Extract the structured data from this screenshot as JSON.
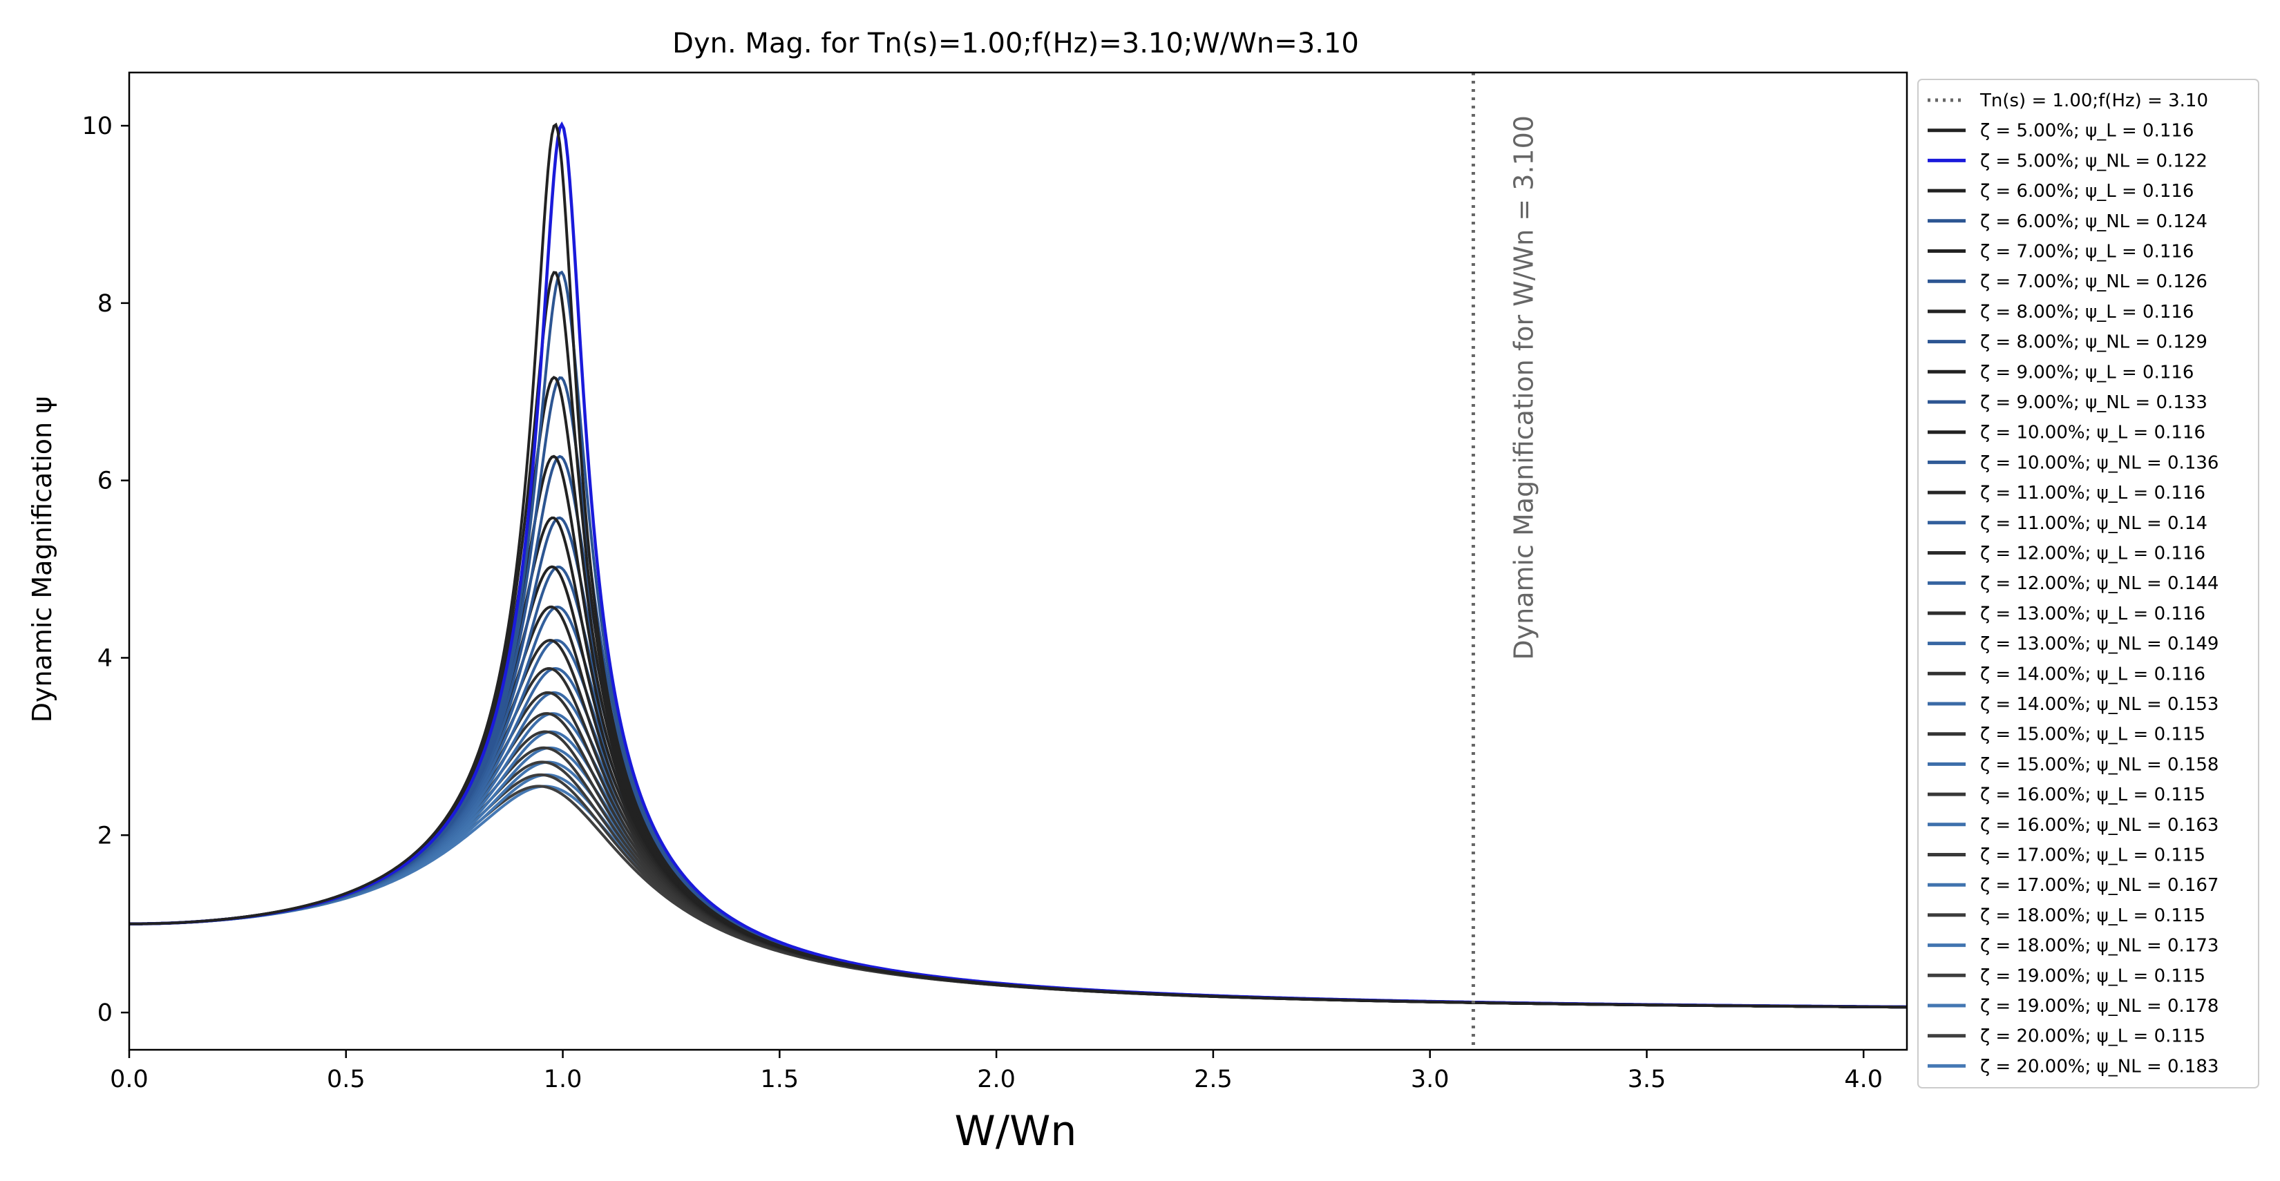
{
  "chart_data": {
    "type": "line",
    "title": "Dyn. Mag. for Tn(s)=1.00;f(Hz)=3.10;W/Wn=3.10",
    "xlabel": "W/Wn",
    "ylabel": "Dynamic Magnification ψ",
    "xlim": [
      0,
      4.1
    ],
    "ylim": [
      -0.42,
      10.6
    ],
    "x_ticks": [
      "0.0",
      "0.5",
      "1.0",
      "1.5",
      "2.0",
      "2.5",
      "3.0",
      "3.5",
      "4.0"
    ],
    "x_tick_values": [
      0,
      0.5,
      1.0,
      1.5,
      2.0,
      2.5,
      3.0,
      3.5,
      4.0
    ],
    "y_ticks": [
      "0",
      "2",
      "4",
      "6",
      "8",
      "10"
    ],
    "y_tick_values": [
      0,
      2,
      4,
      6,
      8,
      10
    ],
    "grid": false,
    "legend_position": "outside-right",
    "reference_line": {
      "label": "Tn(s) = 1.00;f(Hz) = 3.10",
      "x": 3.1,
      "color": "#666666",
      "annotation": "Dynamic Magnification for W/Wn = 3.100"
    },
    "series": [
      {
        "label": "ζ = 5.00%; ψ_L = 0.116",
        "damping": 0.05,
        "kind": "L",
        "color": "#222222"
      },
      {
        "label": "ζ = 5.00%; ψ_NL = 0.122",
        "damping": 0.05,
        "kind": "NL",
        "color": "#1a1adb"
      },
      {
        "label": "ζ = 6.00%; ψ_L = 0.116",
        "damping": 0.06,
        "kind": "L",
        "color": "#222222"
      },
      {
        "label": "ζ = 6.00%; ψ_NL = 0.124",
        "damping": 0.06,
        "kind": "NL",
        "color": "#2c5592"
      },
      {
        "label": "ζ = 7.00%; ψ_L = 0.116",
        "damping": 0.07,
        "kind": "L",
        "color": "#222222"
      },
      {
        "label": "ζ = 7.00%; ψ_NL = 0.126",
        "damping": 0.07,
        "kind": "NL",
        "color": "#2c5592"
      },
      {
        "label": "ζ = 8.00%; ψ_L = 0.116",
        "damping": 0.08,
        "kind": "L",
        "color": "#222222"
      },
      {
        "label": "ζ = 8.00%; ψ_NL = 0.129",
        "damping": 0.08,
        "kind": "NL",
        "color": "#2c5592"
      },
      {
        "label": "ζ = 9.00%; ψ_L = 0.116",
        "damping": 0.09,
        "kind": "L",
        "color": "#222222"
      },
      {
        "label": "ζ = 9.00%; ψ_NL = 0.133",
        "damping": 0.09,
        "kind": "NL",
        "color": "#2c5592"
      },
      {
        "label": "ζ = 10.00%; ψ_L = 0.116",
        "damping": 0.1,
        "kind": "L",
        "color": "#222222"
      },
      {
        "label": "ζ = 10.00%; ψ_NL = 0.136",
        "damping": 0.1,
        "kind": "NL",
        "color": "#2f5a96"
      },
      {
        "label": "ζ = 11.00%; ψ_L = 0.116",
        "damping": 0.11,
        "kind": "L",
        "color": "#262626"
      },
      {
        "label": "ζ = 11.00%; ψ_NL = 0.14",
        "damping": 0.11,
        "kind": "NL",
        "color": "#325f9c"
      },
      {
        "label": "ζ = 12.00%; ψ_L = 0.116",
        "damping": 0.12,
        "kind": "L",
        "color": "#2a2a2a"
      },
      {
        "label": "ζ = 12.00%; ψ_NL = 0.144",
        "damping": 0.12,
        "kind": "NL",
        "color": "#3563a0"
      },
      {
        "label": "ζ = 13.00%; ψ_L = 0.116",
        "damping": 0.13,
        "kind": "L",
        "color": "#2e2e2e"
      },
      {
        "label": "ζ = 13.00%; ψ_NL = 0.149",
        "damping": 0.13,
        "kind": "NL",
        "color": "#3766a3"
      },
      {
        "label": "ζ = 14.00%; ψ_L = 0.116",
        "damping": 0.14,
        "kind": "L",
        "color": "#313131"
      },
      {
        "label": "ζ = 14.00%; ψ_NL = 0.153",
        "damping": 0.14,
        "kind": "NL",
        "color": "#3a6aa6"
      },
      {
        "label": "ζ = 15.00%; ψ_L = 0.115",
        "damping": 0.15,
        "kind": "L",
        "color": "#343434"
      },
      {
        "label": "ζ = 15.00%; ψ_NL = 0.158",
        "damping": 0.15,
        "kind": "NL",
        "color": "#3c6da9"
      },
      {
        "label": "ζ = 16.00%; ψ_L = 0.115",
        "damping": 0.16,
        "kind": "L",
        "color": "#373737"
      },
      {
        "label": "ζ = 16.00%; ψ_NL = 0.163",
        "damping": 0.16,
        "kind": "NL",
        "color": "#3e70ac"
      },
      {
        "label": "ζ = 17.00%; ψ_L = 0.115",
        "damping": 0.17,
        "kind": "L",
        "color": "#393939"
      },
      {
        "label": "ζ = 17.00%; ψ_NL = 0.167",
        "damping": 0.17,
        "kind": "NL",
        "color": "#4073ae"
      },
      {
        "label": "ζ = 18.00%; ψ_L = 0.115",
        "damping": 0.18,
        "kind": "L",
        "color": "#3b3b3b"
      },
      {
        "label": "ζ = 18.00%; ψ_NL = 0.173",
        "damping": 0.18,
        "kind": "NL",
        "color": "#4275b0"
      },
      {
        "label": "ζ = 19.00%; ψ_L = 0.115",
        "damping": 0.19,
        "kind": "L",
        "color": "#3d3d3d"
      },
      {
        "label": "ζ = 19.00%; ψ_NL = 0.178",
        "damping": 0.19,
        "kind": "NL",
        "color": "#4477b2"
      },
      {
        "label": "ζ = 20.00%; ψ_L = 0.115",
        "damping": 0.2,
        "kind": "L",
        "color": "#3f3f3f"
      },
      {
        "label": "ζ = 20.00%; ψ_NL = 0.183",
        "damping": 0.2,
        "kind": "NL",
        "color": "#4679b4"
      }
    ]
  }
}
